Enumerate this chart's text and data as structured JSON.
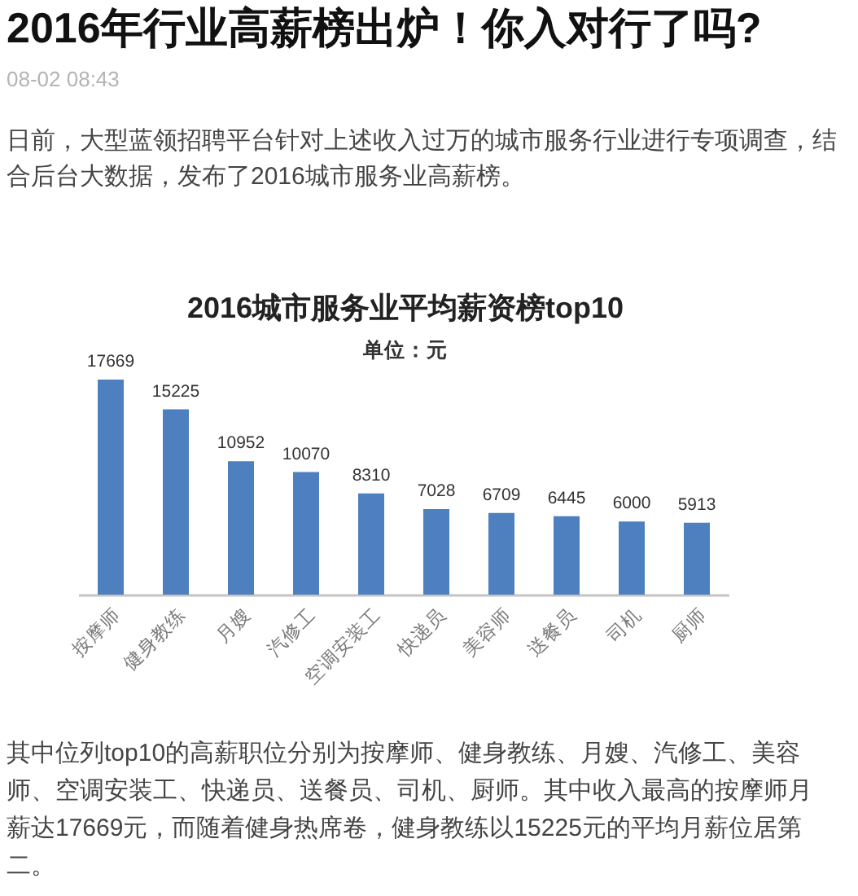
{
  "chart_data": {
    "type": "bar",
    "title": "2016城市服务业平均薪资榜top10",
    "subtitle": "单位：元",
    "categories": [
      "按摩师",
      "健身教练",
      "月嫂",
      "汽修工",
      "空调安装工",
      "快递员",
      "美容师",
      "送餐员",
      "司机",
      "厨师"
    ],
    "values": [
      17669,
      15225,
      10952,
      10070,
      8310,
      7028,
      6709,
      6445,
      6000,
      5913
    ],
    "color": "#4e7fbf",
    "data_labels": true,
    "annotations": [
      "2016年行业高薪榜出炉！你入对行了吗?",
      "08-02 08:43",
      "日前，大型蓝领招聘平台针对上述收入过万的城市服务行业进行专项调查，结合后台大数据，发布了2016城市服务业高薪榜。",
      "其中位列top10的高薪职位分别为按摩师、健身教练、月嫂、汽修工、美容师、空调安装工、快递员、送餐员、司机、厨师。其中收入最高的按摩师月薪达17669元，而随着健身热席卷，健身教练以15225元的平均月薪位居第二。"
    ]
  }
}
